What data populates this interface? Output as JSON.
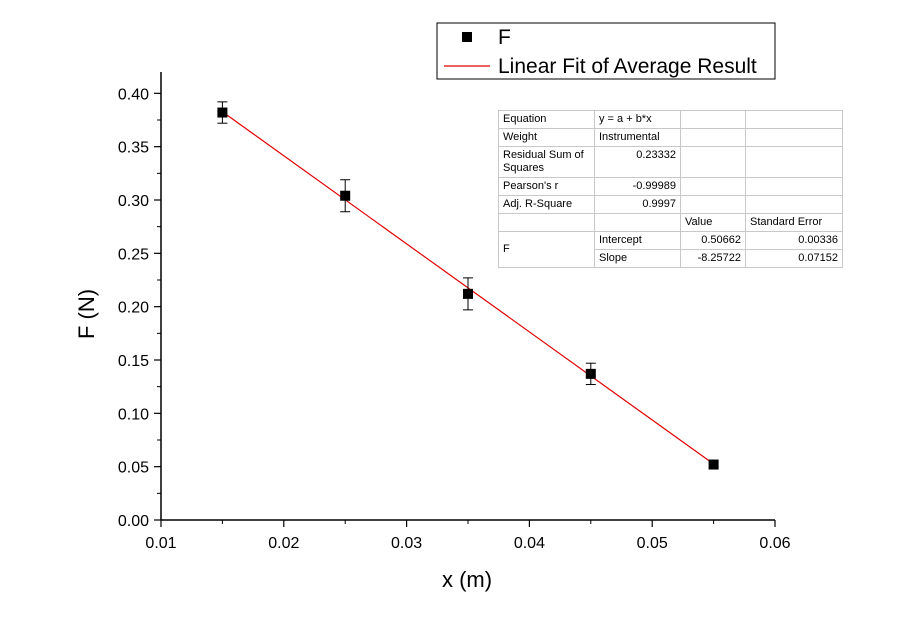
{
  "chart_data": {
    "type": "scatter",
    "xlabel": "x (m)",
    "ylabel": "F (N)",
    "xlim": [
      0.01,
      0.06
    ],
    "ylim": [
      0.0,
      0.42
    ],
    "x_ticks": [
      "0.01",
      "0.02",
      "0.03",
      "0.04",
      "0.05",
      "0.06"
    ],
    "y_ticks": [
      "0.00",
      "0.05",
      "0.10",
      "0.15",
      "0.20",
      "0.25",
      "0.30",
      "0.35",
      "0.40"
    ],
    "series": [
      {
        "name": "F",
        "x": [
          0.015,
          0.025,
          0.035,
          0.045,
          0.055
        ],
        "y": [
          0.382,
          0.304,
          0.212,
          0.137,
          0.052
        ],
        "errors": [
          0.01,
          0.015,
          0.015,
          0.01,
          0.003
        ],
        "color": "#000000"
      }
    ],
    "fit": {
      "name": "Linear Fit of Average Result",
      "intercept": 0.50662,
      "slope": -8.25722,
      "x_range": [
        0.015,
        0.055
      ],
      "color": "#e00000"
    },
    "legend": {
      "position": "top-right",
      "entries": [
        "F",
        "Linear Fit of Average Result"
      ]
    }
  },
  "stats_table": {
    "equation_label": "Equation",
    "equation_value": "y = a + b*x",
    "weight_label": "Weight",
    "weight_value": "Instrumental",
    "rss_label": "Residual Sum of Squares",
    "rss_value": "0.23332",
    "pearson_label": "Pearson's r",
    "pearson_value": "-0.99989",
    "adjr_label": "Adj. R-Square",
    "adjr_value": "0.9997",
    "value_header": "Value",
    "stderr_header": "Standard Error",
    "group_label": "F",
    "intercept_label": "Intercept",
    "intercept_value": "0.50662",
    "intercept_err": "0.00336",
    "slope_label": "Slope",
    "slope_value": "-8.25722",
    "slope_err": "0.07152"
  }
}
